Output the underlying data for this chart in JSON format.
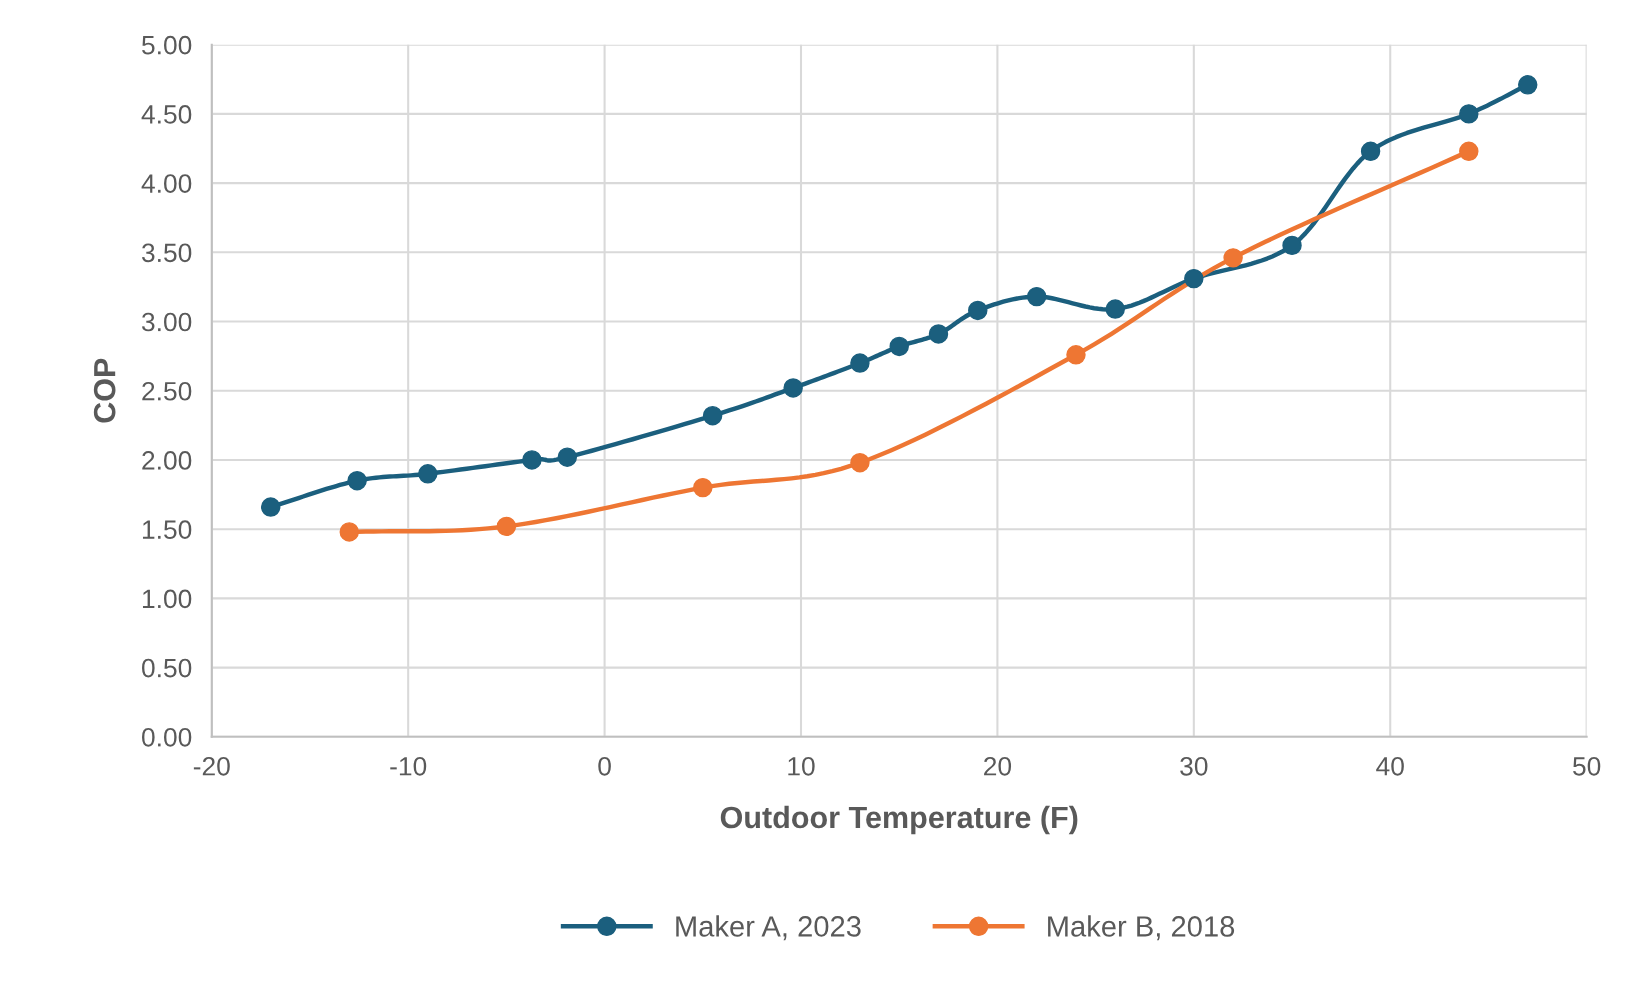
{
  "chart_data": {
    "type": "line",
    "xlabel": "Outdoor Temperature (F)",
    "ylabel": "COP",
    "xlim": [
      -20,
      50
    ],
    "xticks": [
      -20,
      -10,
      0,
      10,
      20,
      30,
      40,
      50
    ],
    "ylim": [
      0,
      5
    ],
    "yticks": [
      {
        "value": 0,
        "label": "0.00"
      },
      {
        "value": 0.5,
        "label": "0.50"
      },
      {
        "value": 1,
        "label": "1.00"
      },
      {
        "value": 1.5,
        "label": "1.50"
      },
      {
        "value": 2,
        "label": "2.00"
      },
      {
        "value": 2.5,
        "label": "2.50"
      },
      {
        "value": 3,
        "label": "3.00"
      },
      {
        "value": 3.5,
        "label": "3.50"
      },
      {
        "value": 4,
        "label": "4.00"
      },
      {
        "value": 4.5,
        "label": "4.50"
      },
      {
        "value": 5,
        "label": "5.00"
      }
    ],
    "grid": true,
    "legend": "bottom",
    "marker": "circle",
    "line_style": "solid",
    "series": [
      {
        "name": "Maker A, 2023",
        "color": "#1b5f7e",
        "x": [
          -17,
          -12.6,
          -9,
          -3.7,
          -1.9,
          5.5,
          9.6,
          13,
          15,
          17,
          19,
          22,
          26,
          30,
          35,
          39,
          44,
          47
        ],
        "values": [
          1.66,
          1.85,
          1.9,
          2.0,
          2.02,
          2.32,
          2.52,
          2.7,
          2.82,
          2.91,
          3.08,
          3.18,
          3.09,
          3.31,
          3.55,
          4.23,
          4.5,
          4.71
        ]
      },
      {
        "name": "Maker B, 2018",
        "color": "#ee7633",
        "x": [
          -13,
          -5,
          5,
          13,
          24,
          32,
          44
        ],
        "values": [
          1.48,
          1.52,
          1.8,
          1.98,
          2.76,
          3.46,
          4.23
        ]
      }
    ]
  }
}
